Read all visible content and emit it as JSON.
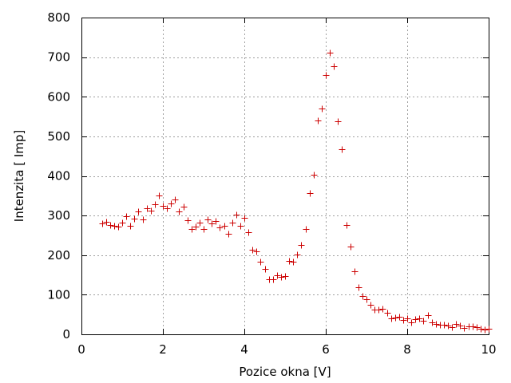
{
  "chart_data": {
    "type": "scatter",
    "title": "",
    "xlabel": "Pozice okna [V]",
    "ylabel": "Intenzita [ Imp]",
    "xlim": [
      0,
      10
    ],
    "ylim": [
      0,
      800
    ],
    "x_ticks": [
      0,
      2,
      4,
      6,
      8,
      10
    ],
    "y_ticks": [
      0,
      100,
      200,
      300,
      400,
      500,
      600,
      700,
      800
    ],
    "x_tick_labels": [
      "0",
      "2",
      "4",
      "6",
      "8",
      "10"
    ],
    "y_tick_labels": [
      "0",
      "100",
      "200",
      "300",
      "400",
      "500",
      "600",
      "700",
      "800"
    ],
    "grid": true,
    "legend": "none",
    "marker": "plus",
    "color": "#cc0000",
    "series": [
      {
        "x": [
          0.5,
          0.6,
          0.7,
          0.8,
          0.9,
          1.0,
          1.1,
          1.2,
          1.3,
          1.4,
          1.5,
          1.6,
          1.7,
          1.8,
          1.9,
          2.0,
          2.1,
          2.2,
          2.3,
          2.4,
          2.5,
          2.6,
          2.7,
          2.8,
          2.9,
          3.0,
          3.1,
          3.2,
          3.3,
          3.4,
          3.5,
          3.6,
          3.7,
          3.8,
          3.9,
          4.0,
          4.1,
          4.2,
          4.3,
          4.4,
          4.5,
          4.6,
          4.7,
          4.8,
          4.9,
          5.0,
          5.1,
          5.2,
          5.3,
          5.4,
          5.5,
          5.6,
          5.7,
          5.8,
          5.9,
          6.0,
          6.1,
          6.2,
          6.3,
          6.4,
          6.5,
          6.6,
          6.7,
          6.8,
          6.9,
          7.0,
          7.1,
          7.2,
          7.3,
          7.4,
          7.5,
          7.6,
          7.7,
          7.8,
          7.9,
          8.0,
          8.1,
          8.2,
          8.3,
          8.4,
          8.5,
          8.6,
          8.7,
          8.8,
          8.9,
          9.0,
          9.1,
          9.2,
          9.3,
          9.4,
          9.5,
          9.6,
          9.7,
          9.8,
          9.9,
          10.0
        ],
        "y": [
          280,
          285,
          277,
          275,
          273,
          283,
          298,
          274,
          292,
          310,
          290,
          318,
          313,
          328,
          350,
          325,
          318,
          330,
          340,
          310,
          322,
          288,
          265,
          272,
          283,
          266,
          290,
          281,
          287,
          271,
          275,
          254,
          283,
          302,
          274,
          294,
          258,
          213,
          210,
          183,
          165,
          140,
          140,
          150,
          146,
          148,
          185,
          183,
          202,
          225,
          266,
          357,
          404,
          540,
          570,
          655,
          712,
          678,
          538,
          468,
          276,
          222,
          160,
          118,
          96,
          88,
          74,
          63,
          62,
          65,
          55,
          40,
          42,
          45,
          37,
          40,
          30,
          38,
          40,
          35,
          48,
          30,
          26,
          24,
          25,
          22,
          18,
          26,
          22,
          16,
          20,
          20,
          18,
          15,
          12,
          14
        ]
      }
    ]
  }
}
